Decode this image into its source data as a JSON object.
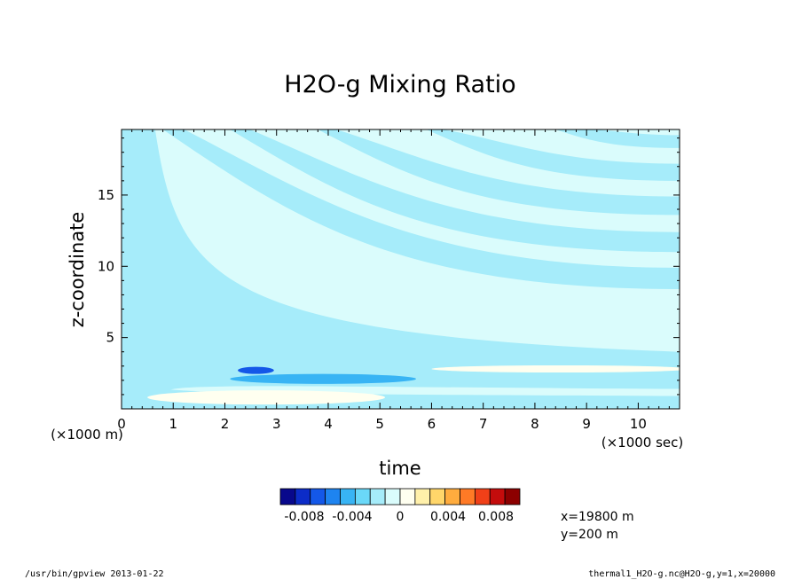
{
  "chart_data": {
    "type": "contour",
    "title": "H2O-g Mixing Ratio",
    "xlabel": "time",
    "ylabel": "z-coordinate",
    "x_unit": "(×1000 sec)",
    "y_unit": "(×1000 m)",
    "xlim": [
      0,
      10.8
    ],
    "ylim": [
      0,
      19.6
    ],
    "x_ticks": [
      0,
      1,
      2,
      3,
      4,
      5,
      6,
      7,
      8,
      9,
      10
    ],
    "y_ticks": [
      5,
      10,
      15
    ],
    "colorbar": {
      "colors": [
        "#08088c",
        "#0c2cc8",
        "#1458e8",
        "#1e84f0",
        "#38b4f4",
        "#6ad8f8",
        "#a6ecfa",
        "#dafcfc",
        "#fffff0",
        "#fff0aa",
        "#ffd66a",
        "#ffac3e",
        "#ff7a26",
        "#f04018",
        "#c40c0c",
        "#8c0000"
      ],
      "tick_labels": [
        "-0.008",
        "-0.004",
        "0",
        "0.004",
        "0.008"
      ],
      "tick_values": [
        -0.008,
        -0.004,
        0,
        0.004,
        0.008
      ],
      "range": [
        -0.01,
        0.01
      ]
    },
    "bands": [
      {
        "level": "-0.0012",
        "t0": 0.8,
        "z0": 19.6,
        "t1": 10.8,
        "z1": 8.4,
        "width": 1.5
      },
      {
        "level": "-0.0012",
        "t0": 2.1,
        "z0": 19.6,
        "t1": 10.8,
        "z1": 11.0,
        "width": 1.4
      },
      {
        "level": "-0.0012",
        "t0": 3.8,
        "z0": 19.6,
        "t1": 10.8,
        "z1": 13.6,
        "width": 1.3
      },
      {
        "level": "-0.0012",
        "t0": 5.9,
        "z0": 19.6,
        "t1": 10.8,
        "z1": 16.0,
        "width": 1.2
      },
      {
        "level": "-0.0012",
        "t0": 8.4,
        "z0": 19.6,
        "t1": 10.8,
        "z1": 18.3,
        "width": 0.9
      }
    ],
    "features": [
      {
        "name": "neg-blob",
        "t": 2.6,
        "z": 2.7,
        "rt": 0.35,
        "rz": 0.25,
        "value": -0.006
      },
      {
        "name": "neg-streak",
        "t": 3.9,
        "z": 2.1,
        "rt": 1.8,
        "rz": 0.35,
        "value": -0.002
      },
      {
        "name": "pos-lens",
        "t": 2.8,
        "z": 0.8,
        "rt": 2.3,
        "rz": 0.5,
        "value": 0.001
      },
      {
        "name": "pos-streak",
        "t": 8.5,
        "z": 2.8,
        "rt": 2.5,
        "rz": 0.25,
        "value": 0.001
      }
    ],
    "annotations": {
      "x_info": "x=19800  m",
      "y_info": "y=200  m"
    }
  },
  "footer": {
    "left": "/usr/bin/gpview  2013-01-22",
    "right": "thermal1_H2O-g.nc@H2O-g,y=1,x=20000"
  }
}
